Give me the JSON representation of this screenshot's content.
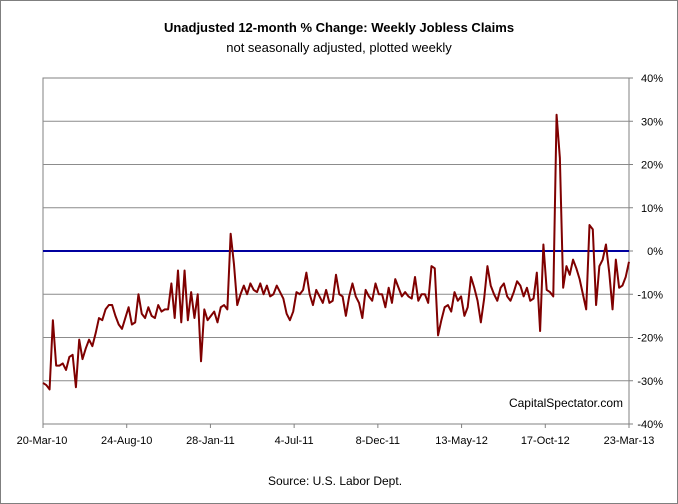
{
  "chart_data": {
    "type": "line",
    "title": "Unadjusted 12-month %  Change: Weekly Jobless Claims",
    "subtitle": "not seasonally adjusted, plotted weekly",
    "source": "Source: U.S. Labor Dept.",
    "watermark": "CapitalSpectator.com",
    "x_ticks": [
      "20-Mar-10",
      "24-Aug-10",
      "28-Jan-11",
      "4-Jul-11",
      "8-Dec-11",
      "13-May-12",
      "17-Oct-12",
      "23-Mar-13"
    ],
    "y_ticks": [
      "40%",
      "30%",
      "20%",
      "10%",
      "0%",
      "-10%",
      "-20%",
      "-30%",
      "-40%"
    ],
    "ylim": [
      -40,
      40
    ],
    "y_axis_side": "right",
    "grid": true,
    "reference_line": {
      "value": 0,
      "color": "#00009f"
    },
    "series": [
      {
        "color": "#7f0000",
        "values": [
          -30.5,
          -31.0,
          -32.0,
          -16.0,
          -26.5,
          -26.5,
          -26.0,
          -27.5,
          -24.5,
          -24.0,
          -31.5,
          -20.5,
          -25.0,
          -22.5,
          -20.5,
          -22.0,
          -19.0,
          -15.5,
          -16.0,
          -13.5,
          -12.5,
          -12.5,
          -15.0,
          -17.0,
          -18.0,
          -15.5,
          -13.0,
          -17.0,
          -16.5,
          -10.0,
          -14.5,
          -15.5,
          -13.0,
          -15.0,
          -15.5,
          -12.5,
          -14.0,
          -13.5,
          -13.5,
          -7.5,
          -15.5,
          -4.5,
          -16.5,
          -4.5,
          -16.0,
          -9.5,
          -15.5,
          -10.0,
          -25.5,
          -13.5,
          -16.0,
          -15.0,
          -14.0,
          -16.5,
          -13.0,
          -12.5,
          -13.5,
          4.0,
          -3.0,
          -12.5,
          -10.0,
          -8.0,
          -10.0,
          -7.5,
          -9.0,
          -9.5,
          -7.5,
          -10.0,
          -8.0,
          -10.5,
          -10.0,
          -8.0,
          -9.5,
          -11.0,
          -14.5,
          -16.0,
          -14.0,
          -9.5,
          -10.0,
          -9.0,
          -5.0,
          -10.0,
          -12.5,
          -9.0,
          -10.5,
          -12.0,
          -9.0,
          -12.0,
          -11.5,
          -5.5,
          -10.0,
          -10.5,
          -15.0,
          -10.5,
          -7.5,
          -10.5,
          -12.0,
          -15.5,
          -9.0,
          -10.5,
          -11.5,
          -7.5,
          -10.0,
          -10.0,
          -13.0,
          -8.5,
          -12.0,
          -6.5,
          -8.5,
          -10.5,
          -9.5,
          -10.5,
          -11.0,
          -6.0,
          -11.5,
          -10.0,
          -10.0,
          -12.0,
          -3.5,
          -4.0,
          -19.5,
          -16.0,
          -13.0,
          -12.5,
          -14.0,
          -9.5,
          -11.5,
          -10.5,
          -15.0,
          -13.0,
          -6.0,
          -8.5,
          -11.5,
          -16.5,
          -11.0,
          -3.5,
          -8.0,
          -10.0,
          -11.5,
          -8.5,
          -7.5,
          -10.5,
          -11.5,
          -9.5,
          -7.0,
          -8.0,
          -10.5,
          -8.5,
          -11.5,
          -11.0,
          -5.0,
          -18.5,
          1.5,
          -9.0,
          -9.5,
          -10.5,
          31.5,
          21.5,
          -8.5,
          -3.5,
          -5.5,
          -2.0,
          -4.0,
          -6.5,
          -10.0,
          -13.5,
          6.0,
          5.0,
          -12.5,
          -3.5,
          -2.0,
          1.5,
          -5.0,
          -13.5,
          -2.0,
          -8.5,
          -8.0,
          -6.0,
          -2.5
        ]
      }
    ]
  }
}
